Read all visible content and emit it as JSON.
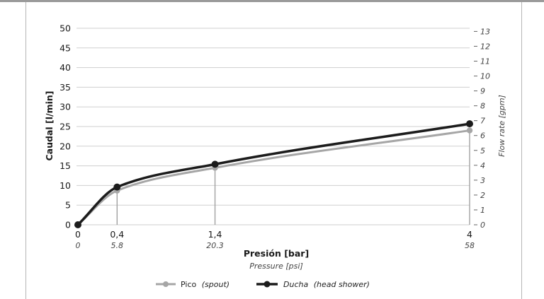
{
  "chart_data": {
    "type": "line",
    "x": [
      0,
      0.4,
      1.4,
      4
    ],
    "x_tick_labels_primary": [
      "0",
      "0,4",
      "1,4",
      "4"
    ],
    "x_tick_labels_secondary": [
      "0",
      "5.8",
      "20.3",
      "58"
    ],
    "xlabel": "Presión [bar]",
    "xlabel_secondary": "Pressure [psi]",
    "ylabel": "Caudal [l/min]",
    "ylim": [
      0,
      50
    ],
    "y_ticks": [
      0,
      5,
      10,
      15,
      20,
      25,
      30,
      35,
      40,
      45,
      50
    ],
    "ylabel_right": "Flow rate [gpm]",
    "y_right_ticks": [
      "0",
      "1",
      "2",
      "3",
      "4",
      "5",
      "6",
      "7",
      "8",
      "9",
      "10",
      "11",
      "12",
      "13"
    ],
    "series": [
      {
        "name": "Pico",
        "name_note": "(spout)",
        "values": [
          0,
          8.7,
          14.5,
          24
        ],
        "color": "#a6a6a6"
      },
      {
        "name": "Ducha",
        "name_note": "(head shower)",
        "values": [
          0,
          9.6,
          15.4,
          25.7
        ],
        "color": "#1c1c1c"
      }
    ],
    "grid": true,
    "legend_position": "bottom-center"
  }
}
